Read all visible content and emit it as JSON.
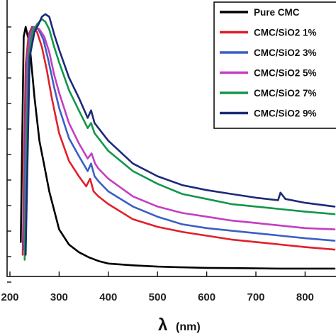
{
  "chart_data": {
    "type": "line",
    "xlabel_symbol": "λ",
    "xlabel_unit": "(nm)",
    "xlim": [
      200,
      860
    ],
    "ylim": [
      0,
      1.12
    ],
    "x_ticks": [
      "200",
      "300",
      "400",
      "500",
      "600",
      "700",
      "800"
    ],
    "x_tick_values": [
      200,
      300,
      400,
      500,
      600,
      700,
      800
    ],
    "y_tick_count": 11,
    "grid": false,
    "legend_position": "top-right",
    "series": [
      {
        "name": "Pure CMC",
        "color": "#000000",
        "x": [
          222,
          228,
          232,
          240,
          250,
          260,
          270,
          280,
          300,
          320,
          340,
          360,
          380,
          400,
          450,
          500,
          550,
          600,
          650,
          700,
          750,
          800,
          860
        ],
        "y": [
          0.15,
          0.96,
          1.0,
          0.93,
          0.72,
          0.55,
          0.45,
          0.35,
          0.2,
          0.14,
          0.11,
          0.09,
          0.075,
          0.065,
          0.058,
          0.053,
          0.05,
          0.048,
          0.047,
          0.046,
          0.045,
          0.045,
          0.045
        ]
      },
      {
        "name": "CMC/SiO2 1%",
        "color": "#e0202a",
        "x": [
          226,
          232,
          238,
          245,
          255,
          265,
          275,
          285,
          300,
          320,
          340,
          355,
          363,
          370,
          380,
          400,
          450,
          500,
          550,
          600,
          650,
          700,
          750,
          800,
          860
        ],
        "y": [
          0.1,
          0.85,
          0.97,
          1.0,
          0.98,
          0.92,
          0.83,
          0.72,
          0.58,
          0.47,
          0.41,
          0.37,
          0.4,
          0.35,
          0.33,
          0.3,
          0.24,
          0.21,
          0.19,
          0.175,
          0.16,
          0.15,
          0.14,
          0.13,
          0.12
        ]
      },
      {
        "name": "CMC/SiO2 3%",
        "color": "#3b5fc4",
        "x": [
          228,
          234,
          240,
          248,
          258,
          268,
          278,
          290,
          300,
          320,
          340,
          358,
          365,
          372,
          380,
          400,
          450,
          500,
          550,
          600,
          650,
          700,
          750,
          800,
          860
        ],
        "y": [
          0.12,
          0.85,
          0.97,
          1.0,
          0.99,
          0.95,
          0.87,
          0.76,
          0.68,
          0.56,
          0.49,
          0.43,
          0.46,
          0.41,
          0.39,
          0.35,
          0.29,
          0.25,
          0.22,
          0.205,
          0.195,
          0.185,
          0.175,
          0.165,
          0.155
        ]
      },
      {
        "name": "CMC/SiO2 5%",
        "color": "#c23fc0",
        "x": [
          230,
          236,
          242,
          250,
          260,
          270,
          280,
          290,
          300,
          320,
          340,
          358,
          366,
          373,
          380,
          400,
          450,
          500,
          550,
          600,
          650,
          700,
          750,
          800,
          860
        ],
        "y": [
          0.14,
          0.87,
          0.97,
          1.0,
          0.99,
          0.96,
          0.9,
          0.81,
          0.74,
          0.62,
          0.54,
          0.48,
          0.5,
          0.46,
          0.44,
          0.4,
          0.33,
          0.29,
          0.265,
          0.25,
          0.235,
          0.225,
          0.215,
          0.205,
          0.2
        ]
      },
      {
        "name": "CMC/SiO2 7%",
        "color": "#13964a",
        "x": [
          230,
          238,
          246,
          255,
          265,
          272,
          280,
          290,
          300,
          320,
          340,
          358,
          365,
          372,
          380,
          400,
          450,
          500,
          550,
          600,
          650,
          700,
          750,
          800,
          860
        ],
        "y": [
          0.08,
          0.88,
          0.98,
          1.01,
          1.03,
          1.02,
          0.99,
          0.92,
          0.86,
          0.75,
          0.67,
          0.6,
          0.62,
          0.58,
          0.56,
          0.51,
          0.43,
          0.38,
          0.34,
          0.32,
          0.3,
          0.29,
          0.28,
          0.27,
          0.26
        ]
      },
      {
        "name": "CMC/SiO2 9%",
        "color": "#1c2a78",
        "x": [
          232,
          240,
          250,
          258,
          265,
          272,
          280,
          290,
          300,
          320,
          340,
          358,
          365,
          372,
          380,
          400,
          450,
          500,
          550,
          600,
          650,
          700,
          745,
          750,
          760,
          800,
          860
        ],
        "y": [
          0.1,
          0.88,
          0.98,
          1.01,
          1.04,
          1.05,
          1.04,
          0.97,
          0.91,
          0.8,
          0.72,
          0.64,
          0.67,
          0.62,
          0.6,
          0.55,
          0.46,
          0.41,
          0.375,
          0.355,
          0.34,
          0.325,
          0.315,
          0.345,
          0.32,
          0.305,
          0.29
        ]
      }
    ]
  }
}
